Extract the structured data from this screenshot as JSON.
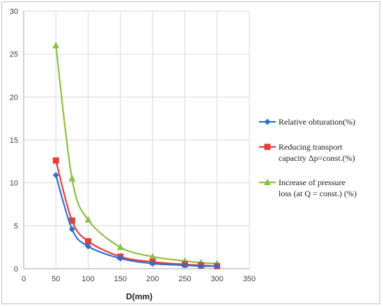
{
  "chart_data": {
    "type": "line",
    "xlabel": "D(mm)",
    "ylabel": "",
    "xlim": [
      0,
      350
    ],
    "ylim": [
      0,
      30
    ],
    "xticks": [
      0,
      50,
      100,
      150,
      200,
      250,
      300,
      350
    ],
    "yticks": [
      0,
      5,
      10,
      15,
      20,
      25,
      30
    ],
    "grid": true,
    "legend_position": "right",
    "x": [
      50,
      75,
      100,
      150,
      200,
      250,
      275,
      300
    ],
    "series": [
      {
        "name": "Relative obturation(%)",
        "legend_lines": [
          "Relative obturation(%)"
        ],
        "color": "#2e6fcf",
        "marker": "diamond",
        "values": [
          10.9,
          4.6,
          2.6,
          1.2,
          0.6,
          0.4,
          0.3,
          0.3
        ]
      },
      {
        "name": "Reducing transport capacity Δp=const.(%)",
        "legend_lines": [
          "Reducing transport",
          "capacity  Δp=const.(%)"
        ],
        "color": "#e0403a",
        "marker": "square",
        "values": [
          12.6,
          5.6,
          3.2,
          1.4,
          0.8,
          0.5,
          0.4,
          0.3
        ]
      },
      {
        "name": "Increase of pressure loss (at Q = const.) (%)",
        "legend_lines": [
          "Increase of pressure",
          "loss (at Q = const.) (%)"
        ],
        "color": "#8dbf45",
        "marker": "triangle",
        "values": [
          26.0,
          10.5,
          5.7,
          2.5,
          1.4,
          0.9,
          0.7,
          0.6
        ]
      }
    ]
  }
}
